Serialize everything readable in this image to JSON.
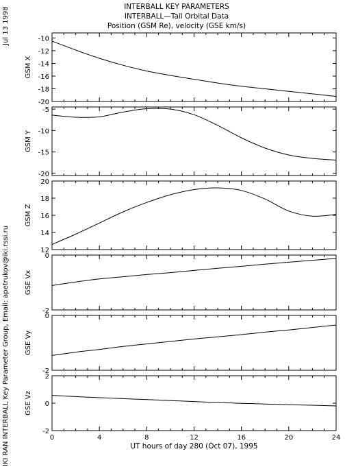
{
  "header": {
    "line1": "INTERBALL KEY PARAMETERS",
    "line2": "INTERBALL—Tail Orbital Data",
    "line3": "Position (GSM Re), velocity (GSE km/s)"
  },
  "side": {
    "date": "Jul 13 1998",
    "credit": "IKI RAN INTERBALL Key Parameter Group, Email: apetrukov@iki.rssi.ru"
  },
  "colors": {
    "line": "#000000",
    "background": "#ffffff"
  },
  "chart_data": [
    {
      "type": "line",
      "ylabel": "GSM X",
      "ylim": [
        -20,
        -9.2
      ],
      "yticks": [
        -10,
        -12,
        -14,
        -16,
        -18,
        -20
      ],
      "x": [
        0,
        2,
        4,
        6,
        8,
        10,
        12,
        14,
        16,
        18,
        20,
        22,
        24
      ],
      "y": [
        -10.5,
        -11.9,
        -13.2,
        -14.3,
        -15.2,
        -15.9,
        -16.5,
        -17.1,
        -17.6,
        -18.0,
        -18.4,
        -18.8,
        -19.2
      ]
    },
    {
      "type": "line",
      "ylabel": "GSM Y",
      "ylim": [
        -20.5,
        -4.5
      ],
      "yticks": [
        -5,
        -10,
        -15,
        -20
      ],
      "x": [
        0,
        2,
        4,
        6,
        8,
        10,
        12,
        14,
        16,
        18,
        20,
        22,
        24
      ],
      "y": [
        -6.4,
        -6.9,
        -6.8,
        -5.7,
        -4.9,
        -5.0,
        -6.3,
        -8.8,
        -11.7,
        -14.1,
        -15.7,
        -16.5,
        -16.9
      ]
    },
    {
      "type": "line",
      "ylabel": "GSM Z",
      "ylim": [
        12,
        20
      ],
      "yticks": [
        12,
        14,
        16,
        18,
        20
      ],
      "x": [
        0,
        2,
        4,
        6,
        8,
        10,
        12,
        14,
        16,
        18,
        20,
        22,
        24
      ],
      "y": [
        12.6,
        13.8,
        15.1,
        16.4,
        17.5,
        18.4,
        19.0,
        19.2,
        18.9,
        17.9,
        16.5,
        15.9,
        16.1
      ]
    },
    {
      "type": "line",
      "ylabel": "GSE Vx",
      "ylim": [
        -2,
        0
      ],
      "yticks": [
        0,
        -2
      ],
      "x": [
        0,
        2,
        4,
        6,
        8,
        10,
        12,
        14,
        16,
        18,
        20,
        22,
        24
      ],
      "y": [
        -1.11,
        -0.98,
        -0.87,
        -0.79,
        -0.71,
        -0.64,
        -0.56,
        -0.48,
        -0.41,
        -0.33,
        -0.26,
        -0.19,
        -0.12
      ]
    },
    {
      "type": "line",
      "ylabel": "GSE Vy",
      "ylim": [
        -2,
        0
      ],
      "yticks": [
        0,
        -2
      ],
      "x": [
        0,
        2,
        4,
        6,
        8,
        10,
        12,
        14,
        16,
        18,
        20,
        22,
        24
      ],
      "y": [
        -1.46,
        -1.34,
        -1.24,
        -1.13,
        -1.04,
        -0.95,
        -0.86,
        -0.78,
        -0.7,
        -0.61,
        -0.53,
        -0.44,
        -0.35
      ]
    },
    {
      "type": "line",
      "ylabel": "GSE Vz",
      "ylim": [
        -2,
        2
      ],
      "yticks": [
        2,
        0,
        -2
      ],
      "x": [
        0,
        2,
        4,
        6,
        8,
        10,
        12,
        14,
        16,
        18,
        20,
        22,
        24
      ],
      "y": [
        0.57,
        0.48,
        0.4,
        0.33,
        0.26,
        0.19,
        0.12,
        0.05,
        -0.01,
        -0.06,
        -0.11,
        -0.15,
        -0.2
      ],
      "xlabel": "UT hours of day 280 (Oct 07), 1995",
      "xlim": [
        0,
        24
      ],
      "xticks": [
        0,
        4,
        8,
        12,
        16,
        20,
        24
      ]
    }
  ]
}
